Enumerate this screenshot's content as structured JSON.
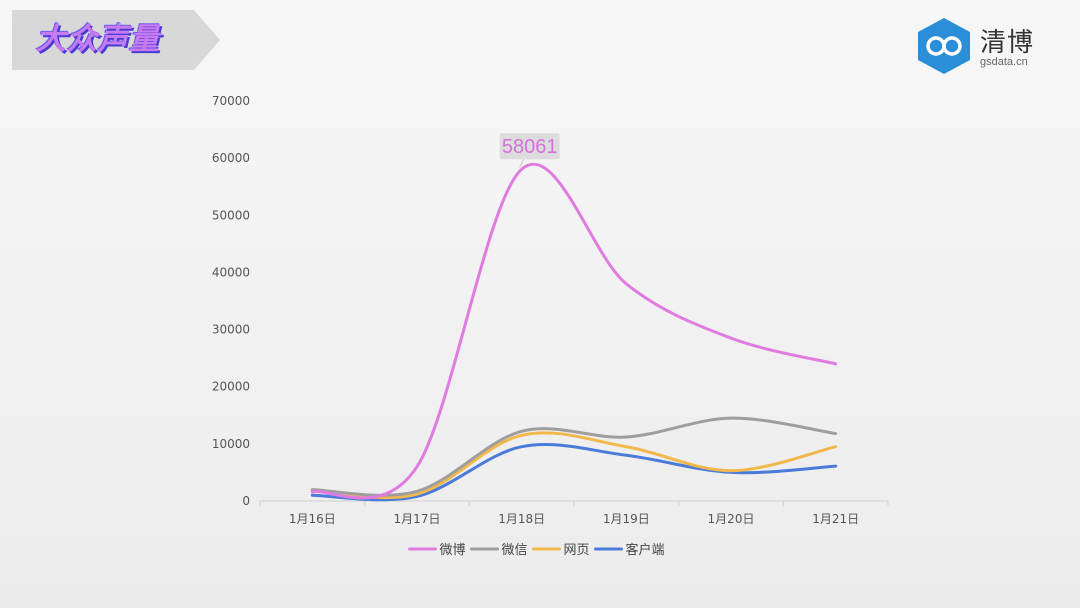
{
  "header": {
    "title": "大众声量"
  },
  "brand": {
    "name": "清博",
    "url": "gsdata.cn"
  },
  "colors": {
    "banner_bg": "#d8d8d8",
    "title": "#c77bf0",
    "brand_blue": "#2a8fd8"
  },
  "chart_data": {
    "type": "line",
    "categories": [
      "1月16日",
      "1月17日",
      "1月18日",
      "1月19日",
      "1月20日",
      "1月21日"
    ],
    "series": [
      {
        "name": "微博",
        "color": "#e07be0",
        "values": [
          1600,
          6000,
          58061,
          38000,
          28500,
          24000
        ]
      },
      {
        "name": "微信",
        "color": "#9e9e9e",
        "values": [
          2000,
          1700,
          12200,
          11200,
          14500,
          11800
        ]
      },
      {
        "name": "网页",
        "color": "#f2b84b",
        "values": [
          1800,
          1200,
          11500,
          9500,
          5300,
          9500
        ]
      },
      {
        "name": "客户端",
        "color": "#4a7bd8",
        "values": [
          1000,
          800,
          9500,
          8000,
          5000,
          6100
        ]
      }
    ],
    "y_ticks": [
      "0",
      "10000",
      "20000",
      "30000",
      "40000",
      "50000",
      "60000",
      "70000"
    ],
    "ylim": [
      0,
      70000
    ],
    "annotation": {
      "label": "58061",
      "series": "微博",
      "category": "1月18日",
      "value": 58061
    },
    "legend_position": "bottom-center",
    "grid": false
  }
}
